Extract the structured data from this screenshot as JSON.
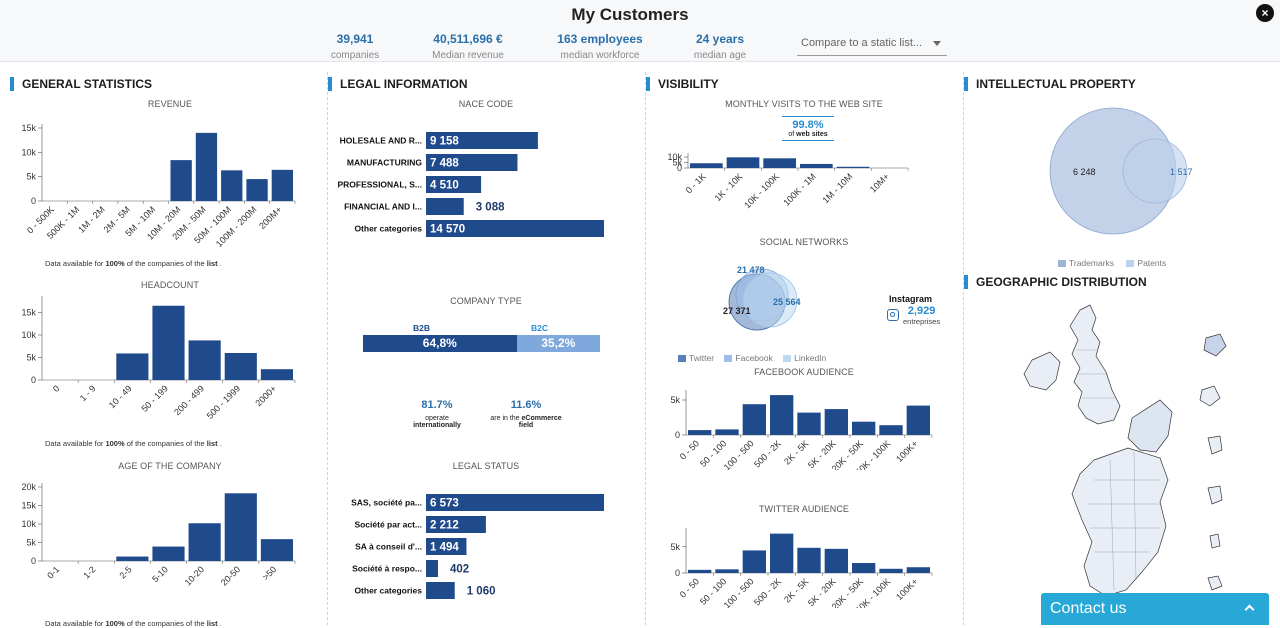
{
  "header": {
    "title": "My Customers",
    "close_label": "×",
    "kpis": [
      {
        "value": "39,941",
        "label": "companies"
      },
      {
        "value": "40,511,696 €",
        "label": "Median revenue"
      },
      {
        "value": "163 employees",
        "label": "median workforce"
      },
      {
        "value": "24 years",
        "label": "median age"
      }
    ],
    "compare_placeholder": "Compare to a static list..."
  },
  "sections": {
    "general": "GENERAL STATISTICS",
    "legal": "LEGAL INFORMATION",
    "visibility": "VISIBILITY",
    "ip": "INTELLECTUAL PROPERTY",
    "geo": "GEOGRAPHIC DISTRIBUTION"
  },
  "subtitles": {
    "revenue": "REVENUE",
    "headcount": "HEADCOUNT",
    "age": "AGE OF THE COMPANY",
    "nace": "NACE CODE",
    "company_type": "COMPANY TYPE",
    "legal_status": "LEGAL STATUS",
    "visits": "MONTHLY VISITS TO THE WEB SITE",
    "social": "SOCIAL NETWORKS",
    "facebook": "FACEBOOK AUDIENCE",
    "twitter": "TWITTER AUDIENCE"
  },
  "notes": {
    "pre": "Data available for ",
    "pct": "100%",
    "mid": " of the companies of the ",
    "list": "list",
    "end": " ."
  },
  "company_type": {
    "b2b_label": "B2B",
    "b2c_label": "B2C",
    "b2b": "64,8%",
    "b2c": "35,2%",
    "b2b_share": 64.8
  },
  "intl": {
    "value": "81.7%",
    "line1": "operate",
    "line2": "internationally"
  },
  "ecommerce": {
    "value": "11.6%",
    "line1": "are in the",
    "line1b": "eCommerce",
    "line2": "field"
  },
  "visits_badge": {
    "value": "99.8%",
    "pre": "of ",
    "bold": "web sites"
  },
  "social": {
    "twitter": "27 371",
    "facebook": "21 478",
    "linkedin": "25 564",
    "instagram_label": "Instagram",
    "instagram_value": "2,929",
    "instagram_unit": "entreprises"
  },
  "social_legend": [
    "Twitter",
    "Facebook",
    "LinkedIn"
  ],
  "ip": {
    "trademarks": "6 248",
    "patents": "1 517",
    "legend": [
      "Trademarks",
      "Patents"
    ]
  },
  "contact_label": "Contact us",
  "chart_data": [
    {
      "type": "bar",
      "title": "REVENUE",
      "categories": [
        "0 - 500K",
        "500K - 1M",
        "1M - 2M",
        "2M - 5M",
        "5M - 10M",
        "10M - 20M",
        "20M - 50M",
        "50M - 100M",
        "100M - 200M",
        "200M+"
      ],
      "values": [
        0,
        0,
        0,
        0,
        0,
        8400,
        14000,
        6300,
        4500,
        6400
      ],
      "ylim": [
        0,
        15000
      ],
      "yticks": [
        "0",
        "5k",
        "10k",
        "15k"
      ],
      "ytick_values": [
        0,
        5000,
        10000,
        15000
      ]
    },
    {
      "type": "bar",
      "title": "HEADCOUNT",
      "categories": [
        "0",
        "1 - 9",
        "10 - 49",
        "50 - 199",
        "200 - 499",
        "500 - 1999",
        "2000+"
      ],
      "values": [
        0,
        0,
        5900,
        16500,
        8800,
        6000,
        2400
      ],
      "ylim": [
        0,
        18000
      ],
      "yticks": [
        "0",
        "5k",
        "10k",
        "15k"
      ],
      "ytick_values": [
        0,
        5000,
        10000,
        15000
      ]
    },
    {
      "type": "bar",
      "title": "AGE OF THE COMPANY",
      "categories": [
        "0-1",
        "1-2",
        "2-5",
        "5-10",
        "10-20",
        "20-50",
        ">50"
      ],
      "values": [
        0,
        0,
        1200,
        3900,
        10200,
        18300,
        5900
      ],
      "ylim": [
        0,
        20000
      ],
      "yticks": [
        "0",
        "5k",
        "10k",
        "15k",
        "20k"
      ],
      "ytick_values": [
        0,
        5000,
        10000,
        15000,
        20000
      ]
    },
    {
      "type": "bar",
      "title": "NACE CODE",
      "categories": [
        "HOLESALE AND R...",
        "MANUFACTURING",
        "PROFESSIONAL, S...",
        "FINANCIAL AND I...",
        "Other categories"
      ],
      "values": [
        9158,
        7488,
        4510,
        3088,
        14570
      ],
      "labels": [
        "9 158",
        "7 488",
        "4 510",
        "3 088",
        "14 570"
      ],
      "max": 14570
    },
    {
      "type": "bar",
      "title": "LEGAL STATUS",
      "categories": [
        "SAS, société pa...",
        "Société par act...",
        "SA à conseil d'...",
        "Société à respo...",
        "Other categories"
      ],
      "values": [
        6573,
        2212,
        1494,
        402,
        1060
      ],
      "labels": [
        "6 573",
        "2 212",
        "1 494",
        "402",
        "1 060"
      ],
      "max": 6573
    },
    {
      "type": "bar",
      "title": "MONTHLY VISITS TO THE WEB SITE",
      "categories": [
        "0 - 1K",
        "1K - 10K",
        "10K - 100K",
        "100K - 1M",
        "1M - 10M",
        "10M+"
      ],
      "values": [
        4300,
        9700,
        8800,
        3700,
        1100,
        0
      ],
      "ylim": [
        0,
        10000
      ],
      "yticks": [
        "0",
        "5k",
        "10k"
      ],
      "ytick_values": [
        0,
        5000,
        10000
      ]
    },
    {
      "type": "bar",
      "title": "FACEBOOK AUDIENCE",
      "categories": [
        "0 - 50",
        "50 - 100",
        "100 - 500",
        "500 - 2K",
        "2K - 5K",
        "5K - 20K",
        "20K - 50K",
        "50K - 100K",
        "100K+"
      ],
      "values": [
        700,
        800,
        4400,
        5700,
        3200,
        3700,
        1900,
        1400,
        4200
      ],
      "ylim": [
        0,
        6000
      ],
      "yticks": [
        "0",
        "5k"
      ],
      "ytick_values": [
        0,
        5000
      ]
    },
    {
      "type": "bar",
      "title": "TWITTER AUDIENCE",
      "categories": [
        "0 - 50",
        "50 - 100",
        "100 - 500",
        "500 - 2K",
        "2K - 5K",
        "5K - 20K",
        "20K - 50K",
        "50K - 100K",
        "100K+"
      ],
      "values": [
        600,
        700,
        4300,
        7500,
        4800,
        4600,
        1900,
        800,
        1100
      ],
      "ylim": [
        0,
        8000
      ],
      "yticks": [
        "0",
        "5k"
      ],
      "ytick_values": [
        0,
        5000
      ]
    }
  ]
}
